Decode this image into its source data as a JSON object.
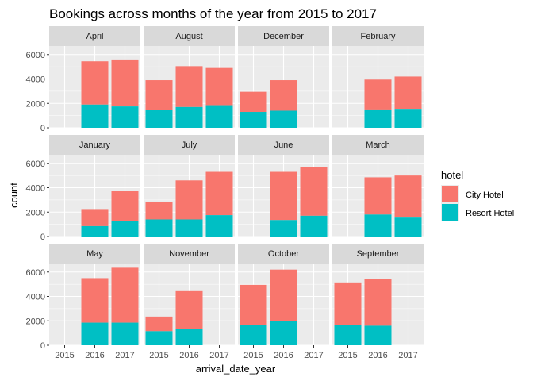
{
  "chart_data": {
    "type": "bar",
    "stacked": true,
    "facet_by": "month",
    "title": "Bookings across months of the year from 2015 to 2017",
    "xlabel": "arrival_date_year",
    "ylabel": "count",
    "x_categories": [
      "2015",
      "2016",
      "2017"
    ],
    "ylim": [
      0,
      6700
    ],
    "y_ticks": [
      0,
      2000,
      4000,
      6000
    ],
    "grid": true,
    "legend": {
      "title": "hotel",
      "placement": "right",
      "entries": [
        {
          "name": "City Hotel",
          "color": "#F8766D"
        },
        {
          "name": "Resort Hotel",
          "color": "#00BFC4"
        }
      ]
    },
    "panels": [
      {
        "month": "April",
        "resort": [
          null,
          1900,
          1750
        ],
        "city": [
          null,
          3550,
          3850
        ]
      },
      {
        "month": "August",
        "resort": [
          1450,
          1700,
          1850
        ],
        "city": [
          2450,
          3350,
          3050
        ]
      },
      {
        "month": "December",
        "resort": [
          1300,
          1400,
          null
        ],
        "city": [
          1650,
          2500,
          null
        ]
      },
      {
        "month": "February",
        "resort": [
          null,
          1500,
          1550
        ],
        "city": [
          null,
          2450,
          2650
        ]
      },
      {
        "month": "January",
        "resort": [
          null,
          850,
          1300
        ],
        "city": [
          null,
          1400,
          2450
        ]
      },
      {
        "month": "July",
        "resort": [
          1400,
          1400,
          1750
        ],
        "city": [
          1400,
          3200,
          3550
        ]
      },
      {
        "month": "June",
        "resort": [
          null,
          1350,
          1700
        ],
        "city": [
          null,
          3950,
          4000
        ]
      },
      {
        "month": "March",
        "resort": [
          null,
          1800,
          1550
        ],
        "city": [
          null,
          3050,
          3450
        ]
      },
      {
        "month": "May",
        "resort": [
          null,
          1850,
          1850
        ],
        "city": [
          null,
          3650,
          4500
        ]
      },
      {
        "month": "November",
        "resort": [
          1150,
          1350,
          null
        ],
        "city": [
          1200,
          3150,
          null
        ]
      },
      {
        "month": "October",
        "resort": [
          1650,
          2000,
          null
        ],
        "city": [
          3300,
          4200,
          null
        ]
      },
      {
        "month": "September",
        "resort": [
          1650,
          1600,
          null
        ],
        "city": [
          3500,
          3800,
          null
        ]
      }
    ]
  }
}
